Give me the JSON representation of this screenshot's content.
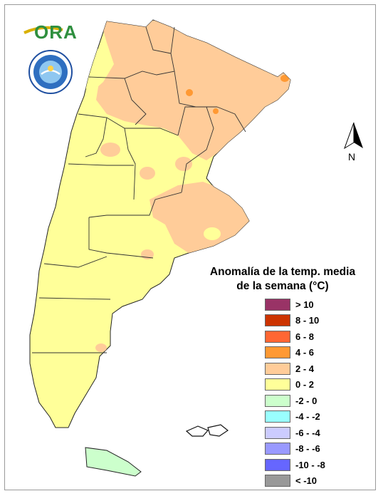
{
  "logos": {
    "ora_text": "ORA"
  },
  "north": {
    "label": "N"
  },
  "legend": {
    "title_line1": "Anomalía de la temp. media",
    "title_line2": "de la semana (°C)",
    "items": [
      {
        "label": "> 10",
        "color": "#993366"
      },
      {
        "label": "8 - 10",
        "color": "#cc3300"
      },
      {
        "label": "6 - 8",
        "color": "#ff6633"
      },
      {
        "label": "4 - 6",
        "color": "#ff9933"
      },
      {
        "label": "2 - 4",
        "color": "#ffcc99"
      },
      {
        "label": "0 - 2",
        "color": "#ffff99"
      },
      {
        "label": "-2 - 0",
        "color": "#ccffcc"
      },
      {
        "label": "-4 - -2",
        "color": "#99ffff"
      },
      {
        "label": "-6 - -4",
        "color": "#ccccff"
      },
      {
        "label": "-8 - -6",
        "color": "#9999ff"
      },
      {
        "label": "-10 - -8",
        "color": "#6666ff"
      },
      {
        "label": "< -10",
        "color": "#999999"
      }
    ]
  }
}
